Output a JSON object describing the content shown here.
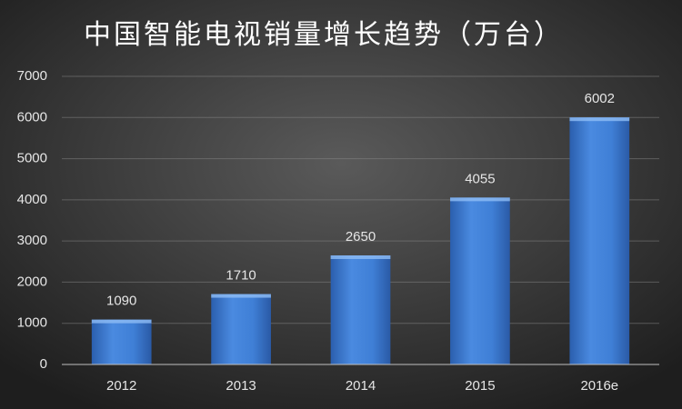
{
  "chart_data": {
    "type": "bar",
    "title": "中国智能电视销量增长趋势（万台）",
    "categories": [
      "2012",
      "2013",
      "2014",
      "2015",
      "2016e"
    ],
    "values": [
      1090,
      1710,
      2650,
      4055,
      6002
    ],
    "color": "#3f7fd6",
    "ylim": [
      0,
      7000
    ],
    "yticks": [
      0,
      1000,
      2000,
      3000,
      4000,
      5000,
      6000,
      7000
    ],
    "grid": true
  }
}
